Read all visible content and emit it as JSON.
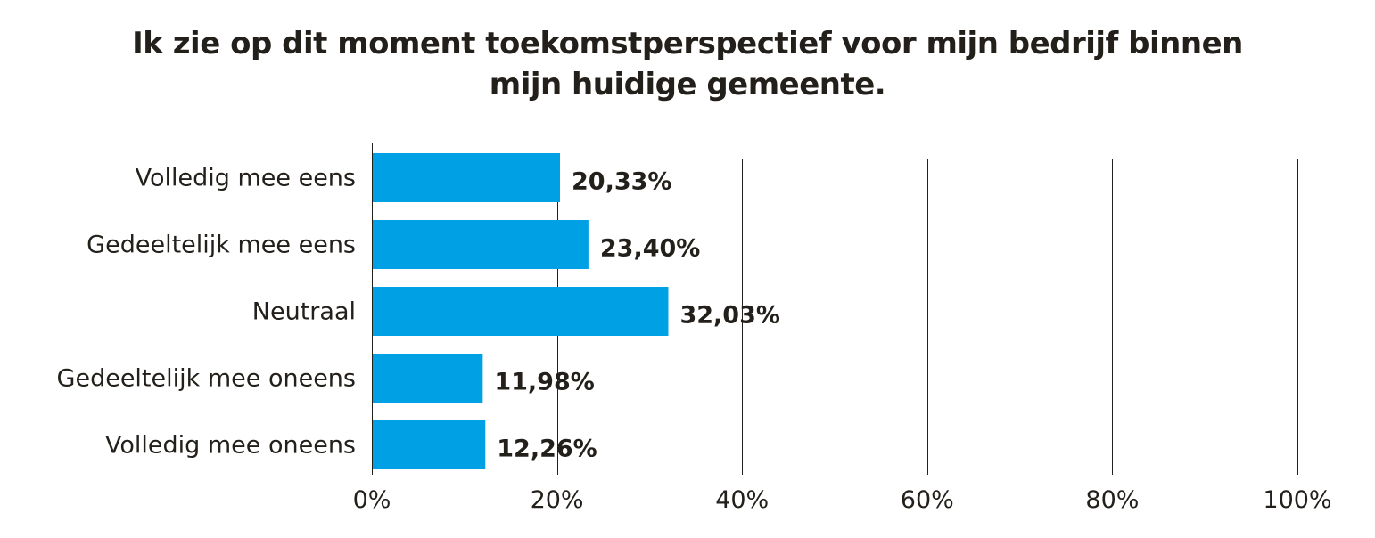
{
  "chart_data": {
    "type": "bar",
    "orientation": "horizontal",
    "title_lines": [
      "Ik zie op dit moment toekomstperspectief voor mijn bedrijf binnen",
      "mijn huidige gemeente."
    ],
    "categories": [
      "Volledig mee eens",
      "Gedeeltelijk mee eens",
      "Neutraal",
      "Gedeeltelijk mee oneens",
      "Volledig mee oneens"
    ],
    "values": [
      20.33,
      23.4,
      32.03,
      11.98,
      12.26
    ],
    "value_labels": [
      "20,33%",
      "23,40%",
      "32,03%",
      "11,98%",
      "12,26%"
    ],
    "xlim": [
      0,
      100
    ],
    "x_ticks": [
      0,
      20,
      40,
      60,
      80,
      100
    ],
    "x_tick_labels": [
      "0%",
      "20%",
      "40%",
      "60%",
      "80%",
      "100%"
    ],
    "grid": true,
    "legend": "none",
    "bar_color": "#00a0e4"
  }
}
